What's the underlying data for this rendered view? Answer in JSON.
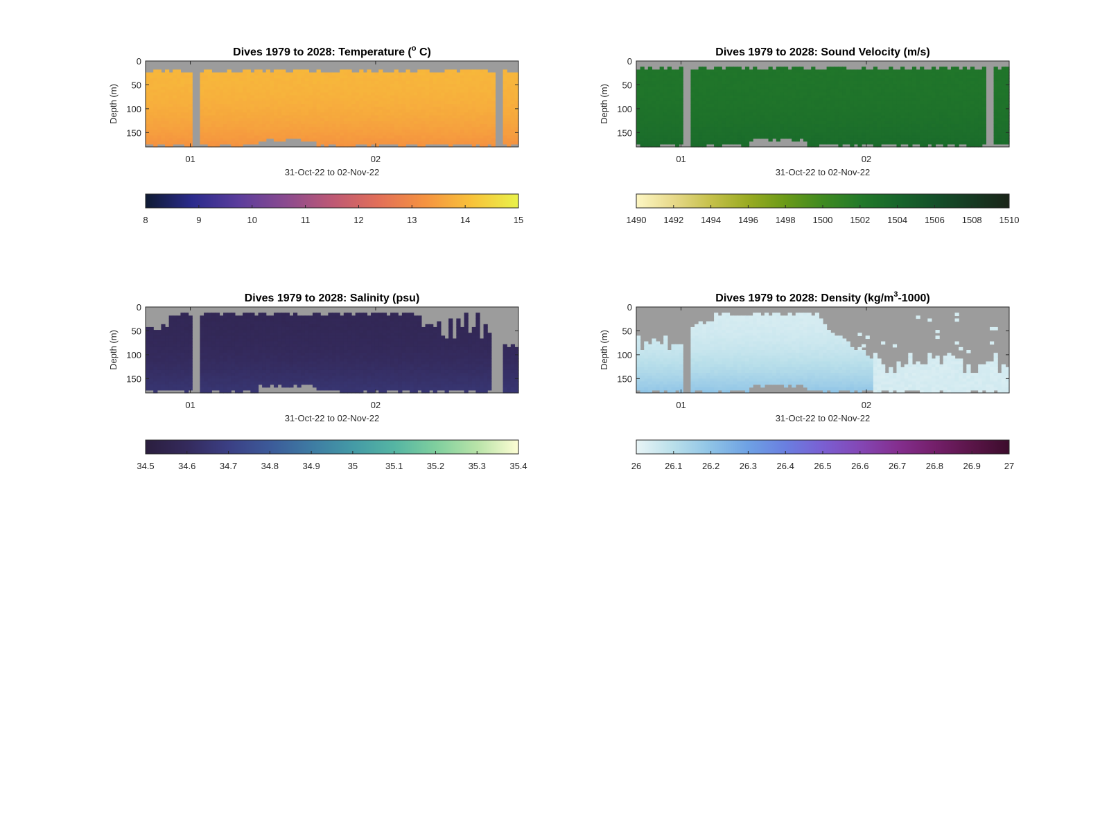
{
  "chart_data": [
    {
      "type": "heatmap",
      "title_main": "Dives 1979 to 2028: Temperature (",
      "title_sup": "o",
      "title_end": " C)",
      "xlabel": "31-Oct-22 to 02-Nov-22",
      "ylabel": "Depth (m)",
      "x_ticks": [
        "01",
        "02"
      ],
      "y_ticks": [
        "0",
        "50",
        "100",
        "150"
      ],
      "ylim": [
        0,
        180
      ],
      "cbar_ticks": [
        "8",
        "9",
        "10",
        "11",
        "12",
        "13",
        "14",
        "15"
      ],
      "cbar_range": [
        8,
        15
      ],
      "colormap": [
        "#0f1b33",
        "#2a2a8c",
        "#5b3d9c",
        "#8a4a8f",
        "#bd5875",
        "#e26f58",
        "#f59340",
        "#f8c23a",
        "#e9f24a"
      ],
      "value_estimate": {
        "surface": 13.9,
        "bottom": 13.2
      }
    },
    {
      "type": "heatmap",
      "title_main": "Dives 1979 to 2028: Sound Velocity (m/s)",
      "title_sup": "",
      "title_end": "",
      "xlabel": "31-Oct-22 to 02-Nov-22",
      "ylabel": "Depth (m)",
      "x_ticks": [
        "01",
        "02"
      ],
      "y_ticks": [
        "0",
        "50",
        "100",
        "150"
      ],
      "ylim": [
        0,
        180
      ],
      "cbar_ticks": [
        "1490",
        "1492",
        "1494",
        "1496",
        "1498",
        "1500",
        "1502",
        "1504",
        "1506",
        "1508",
        "1510"
      ],
      "cbar_range": [
        1490,
        1510
      ],
      "colormap": [
        "#fdf6c3",
        "#e7d98a",
        "#c5c04a",
        "#99ab22",
        "#6a9a18",
        "#3f8a20",
        "#237a2a",
        "#17662b",
        "#14502a",
        "#163a22",
        "#1a2418"
      ],
      "value_estimate": {
        "surface": 1502.5,
        "bottom": 1503.5
      }
    },
    {
      "type": "heatmap",
      "title_main": "Dives 1979 to 2028: Salinity (psu)",
      "title_sup": "",
      "title_end": "",
      "xlabel": "31-Oct-22 to 02-Nov-22",
      "ylabel": "Depth (m)",
      "x_ticks": [
        "01",
        "02"
      ],
      "y_ticks": [
        "0",
        "50",
        "100",
        "150"
      ],
      "ylim": [
        0,
        180
      ],
      "cbar_ticks": [
        "34.5",
        "34.6",
        "34.7",
        "34.8",
        "34.9",
        "35",
        "35.1",
        "35.2",
        "35.3",
        "35.4"
      ],
      "cbar_range": [
        34.5,
        35.4
      ],
      "colormap": [
        "#2b1e3e",
        "#342a5c",
        "#3b3f84",
        "#3c5a99",
        "#3e7ba3",
        "#449aa6",
        "#55b5a3",
        "#7fcf9e",
        "#b8e3a8",
        "#fdfdd4"
      ],
      "value_estimate": {
        "surface": 34.58,
        "bottom": 34.66
      }
    },
    {
      "type": "heatmap",
      "title_main": "Dives 1979 to 2028: Density (kg/m",
      "title_sup": "3",
      "title_end": "-1000)",
      "xlabel": "31-Oct-22 to 02-Nov-22",
      "ylabel": "Depth (m)",
      "x_ticks": [
        "01",
        "02"
      ],
      "y_ticks": [
        "0",
        "50",
        "100",
        "150"
      ],
      "ylim": [
        0,
        180
      ],
      "cbar_ticks": [
        "26",
        "26.1",
        "26.2",
        "26.3",
        "26.4",
        "26.5",
        "26.6",
        "26.7",
        "26.8",
        "26.9",
        "27"
      ],
      "cbar_range": [
        26,
        27
      ],
      "colormap": [
        "#e8f4f6",
        "#b9dfea",
        "#8ec3e6",
        "#6ea1e4",
        "#6a7fe0",
        "#7a5fd2",
        "#8447b5",
        "#842f8f",
        "#741f6a",
        "#5a1548",
        "#3c0c2c"
      ],
      "value_estimate": {
        "surface": 26.04,
        "bottom": 26.2
      }
    }
  ]
}
